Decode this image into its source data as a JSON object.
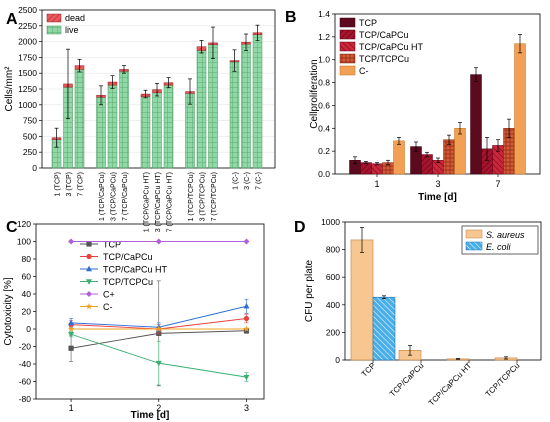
{
  "colors": {
    "live": "#90d8a6",
    "dead": "#e8585c",
    "TCP": "#5c0a1e",
    "TCP/CaPCu": "#a4142e",
    "TCP/CaPCu HT": "#c8283a",
    "TCP/TCPCu": "#d55a3a",
    "C-": "#f2a055",
    "cyto_TCP": "#555555",
    "cyto_TCP/CaPCu": "#e84040",
    "cyto_TCP/CaPCu HT": "#2e6fd0",
    "cyto_TCP/TCPCu": "#3aaf70",
    "cyto_C+": "#b060d8",
    "cyto_C-": "#f0a020",
    "saureus": "#f8c690",
    "ecoli": "#4aaee8"
  },
  "chart_data": [
    {
      "panel": "A",
      "type": "bar",
      "stacked": true,
      "ylabel": "Cells/mm²",
      "ylim": [
        0,
        2500
      ],
      "yticks": [
        0,
        250,
        500,
        750,
        1000,
        1250,
        1500,
        1750,
        2000,
        2250,
        2500
      ],
      "legend": [
        "dead",
        "live"
      ],
      "legend_position": "top-left",
      "groups": [
        "TCP",
        "TCP/CaPCu",
        "TCP/CaPCu HT",
        "TCP/TCPCu",
        "C-"
      ],
      "categories": [
        "1 (TCP)",
        "3 (TCP)",
        "7 (TCP)",
        "1 (TCP/CaPCu)",
        "3 (TCP/CaPCu)",
        "7 (TCP/CaPCu)",
        "1 (TCP/CaPCu HT)",
        "3 (TCP/CaPCu HT)",
        "7 (TCP/CaPCu HT)",
        "1 (TCP/TCPCu)",
        "3 (TCP/TCPCu)",
        "7 (TCP/TCPCu)",
        "1 (C-)",
        "3 (C-)",
        "7 (C-)"
      ],
      "series": [
        {
          "name": "live",
          "values": [
            450,
            1280,
            1560,
            1120,
            1310,
            1530,
            1130,
            1190,
            1310,
            1180,
            1860,
            1950,
            1680,
            1960,
            2110
          ]
        },
        {
          "name": "dead",
          "values": [
            30,
            50,
            60,
            30,
            50,
            30,
            40,
            50,
            40,
            30,
            60,
            30,
            20,
            30,
            30
          ]
        }
      ],
      "errors": [
        150,
        550,
        100,
        150,
        100,
        60,
        60,
        100,
        80,
        200,
        100,
        250,
        170,
        130,
        120
      ]
    },
    {
      "panel": "B",
      "type": "bar",
      "xlabel": "Time [d]",
      "ylabel": "Cellproliferation",
      "ylim": [
        0,
        1.4
      ],
      "yticks": [
        0.0,
        0.2,
        0.4,
        0.6,
        0.8,
        1.0,
        1.2,
        1.4
      ],
      "categories": [
        "1",
        "3",
        "7"
      ],
      "legend_position": "top-left",
      "series": [
        {
          "name": "TCP",
          "values": [
            0.12,
            0.24,
            0.87
          ],
          "errors": [
            0.03,
            0.04,
            0.06
          ]
        },
        {
          "name": "TCP/CaPCu",
          "values": [
            0.1,
            0.17,
            0.22
          ],
          "errors": [
            0.01,
            0.02,
            0.1
          ]
        },
        {
          "name": "TCP/CaPCu HT",
          "values": [
            0.09,
            0.12,
            0.25
          ],
          "errors": [
            0.01,
            0.02,
            0.05
          ]
        },
        {
          "name": "TCP/TCPCu",
          "values": [
            0.1,
            0.3,
            0.4
          ],
          "errors": [
            0.02,
            0.04,
            0.08
          ]
        },
        {
          "name": "C-",
          "values": [
            0.29,
            0.4,
            1.14
          ],
          "errors": [
            0.03,
            0.05,
            0.08
          ]
        }
      ]
    },
    {
      "panel": "C",
      "type": "line",
      "xlabel": "Time [d]",
      "ylabel": "Cytotoxicity [%]",
      "xlim": [
        0.6,
        3.2
      ],
      "xticks": [
        1,
        2,
        3
      ],
      "ylim": [
        -80,
        120
      ],
      "yticks": [
        -80,
        -60,
        -40,
        -20,
        0,
        20,
        40,
        60,
        80,
        100,
        120
      ],
      "legend_position": "top-center",
      "x": [
        1,
        2,
        3
      ],
      "series": [
        {
          "name": "TCP",
          "marker": "square",
          "values": [
            -22,
            -5,
            -2
          ],
          "errors": [
            15,
            60,
            3
          ]
        },
        {
          "name": "TCP/CaPCu",
          "marker": "circle",
          "values": [
            5,
            0,
            12
          ],
          "errors": [
            5,
            5,
            5
          ]
        },
        {
          "name": "TCP/CaPCu HT",
          "marker": "triangle-up",
          "values": [
            7,
            2,
            26
          ],
          "errors": [
            5,
            5,
            8
          ]
        },
        {
          "name": "TCP/TCPCu",
          "marker": "triangle-down",
          "values": [
            -6,
            -39,
            -55
          ],
          "errors": [
            3,
            25,
            5
          ]
        },
        {
          "name": "C+",
          "marker": "diamond",
          "values": [
            100,
            100,
            100
          ],
          "errors": [
            0,
            0,
            0
          ]
        },
        {
          "name": "C-",
          "marker": "star",
          "values": [
            0,
            0,
            0
          ],
          "errors": [
            0,
            0,
            0
          ]
        }
      ]
    },
    {
      "panel": "D",
      "type": "bar",
      "ylabel": "CFU per plate",
      "ylim": [
        0,
        1000
      ],
      "yticks": [
        0,
        200,
        400,
        600,
        800,
        1000
      ],
      "categories": [
        "TCP",
        "TCP/CaPCu",
        "TCP/CaPCu HT",
        "TCP/TCPCu"
      ],
      "legend_position": "top-right",
      "series": [
        {
          "name": "S. aureus",
          "values": [
            870,
            70,
            8,
            15
          ],
          "errors": [
            90,
            35,
            3,
            8
          ]
        },
        {
          "name": "E. coli",
          "values": [
            455,
            0,
            0,
            0
          ],
          "errors": [
            10,
            0,
            0,
            0
          ]
        }
      ]
    }
  ]
}
